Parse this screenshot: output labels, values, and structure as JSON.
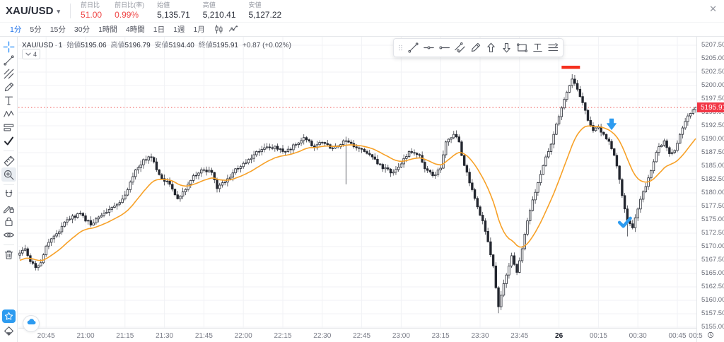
{
  "header": {
    "symbol": "XAU/USD",
    "stats": [
      {
        "label": "前日比",
        "value": "51.00",
        "tone": "red"
      },
      {
        "label": "前日比(率)",
        "value": "0.99%",
        "tone": "red"
      },
      {
        "label": "始値",
        "value": "5,135.71",
        "tone": "dark"
      },
      {
        "label": "高値",
        "value": "5,210.41",
        "tone": "dark"
      },
      {
        "label": "安値",
        "value": "5,127.22",
        "tone": "dark"
      }
    ],
    "close_glyph": "✕"
  },
  "timeframe_bar": {
    "items": [
      "1分",
      "5分",
      "15分",
      "30分",
      "1時間",
      "4時間",
      "1日",
      "1週",
      "1月"
    ],
    "active": "1分",
    "icons": [
      "candles-style",
      "indicators"
    ]
  },
  "legend": {
    "symbol": "XAU/USD",
    "interval": "1",
    "fields": [
      {
        "label": "始値",
        "value": "5195.06"
      },
      {
        "label": "高値",
        "value": "5196.79"
      },
      {
        "label": "安値",
        "value": "5194.40"
      },
      {
        "label": "終値",
        "value": "5195.91"
      }
    ],
    "change": "+0.87 (+0.02%)",
    "collapse_count": "4"
  },
  "sidebar_tools": [
    {
      "name": "crosshair",
      "active": true
    },
    {
      "name": "trend-line"
    },
    {
      "name": "gann-fib"
    },
    {
      "name": "brush"
    },
    {
      "name": "text"
    },
    {
      "name": "xabcd-pattern"
    },
    {
      "name": "prediction"
    },
    {
      "name": "check-mark"
    },
    {
      "name": "divider"
    },
    {
      "name": "ruler"
    },
    {
      "name": "zoom-in",
      "boxed": true
    },
    {
      "name": "divider"
    },
    {
      "name": "magnet"
    },
    {
      "name": "lock-drawing"
    },
    {
      "name": "lock-all"
    },
    {
      "name": "hide-drawings"
    },
    {
      "name": "divider"
    },
    {
      "name": "remove-objects"
    },
    {
      "name": "spacer"
    },
    {
      "name": "favorites-star",
      "fav": true
    },
    {
      "name": "object-tree"
    }
  ],
  "floating_toolbar": [
    "drag-handle",
    "trend-line",
    "horizontal-line",
    "horizontal-ray",
    "parallel-channel",
    "brush",
    "arrow-up",
    "arrow-down",
    "rectangle",
    "text-tool",
    "extended-lines"
  ],
  "corner": {
    "partial_time_label": "00:5"
  },
  "chart_data": {
    "type": "candlestick",
    "symbol": "XAU/USD",
    "interval": "1分",
    "current_bar": {
      "open": 5195.06,
      "high": 5196.79,
      "low": 5194.4,
      "close": 5195.91,
      "change": "+0.87 (+0.02%)"
    },
    "price_axis": {
      "min": 5155.0,
      "max": 5207.5,
      "step": 2.5
    },
    "current_price": 5195.91,
    "time_labels": [
      {
        "i": 10,
        "label": "20:45"
      },
      {
        "i": 25,
        "label": "21:00"
      },
      {
        "i": 40,
        "label": "21:15"
      },
      {
        "i": 55,
        "label": "21:30"
      },
      {
        "i": 70,
        "label": "21:45"
      },
      {
        "i": 85,
        "label": "22:00"
      },
      {
        "i": 100,
        "label": "22:15"
      },
      {
        "i": 115,
        "label": "22:30"
      },
      {
        "i": 130,
        "label": "22:45"
      },
      {
        "i": 145,
        "label": "23:00"
      },
      {
        "i": 160,
        "label": "23:15"
      },
      {
        "i": 175,
        "label": "23:30"
      },
      {
        "i": 190,
        "label": "23:45"
      },
      {
        "i": 205,
        "label": "26",
        "bold": true
      },
      {
        "i": 220,
        "label": "00:15"
      },
      {
        "i": 235,
        "label": "00:30"
      },
      {
        "i": 250,
        "label": "00:45"
      },
      {
        "i": 257,
        "label": "00:5",
        "grid": false
      }
    ],
    "ma": {
      "kind": "EMA",
      "period": 20,
      "color": "#f7a128"
    },
    "candle_colors": {
      "up_fill": "#ffffff",
      "down_fill": "#23262f",
      "border": "#23262f"
    },
    "close_waypoints": [
      [
        0,
        5168.8
      ],
      [
        2,
        5169.6
      ],
      [
        4,
        5167.2
      ],
      [
        6,
        5166.1
      ],
      [
        8,
        5167.0
      ],
      [
        10,
        5170.1
      ],
      [
        14,
        5172.4
      ],
      [
        18,
        5175.0
      ],
      [
        23,
        5176.2
      ],
      [
        27,
        5174.0
      ],
      [
        32,
        5176.2
      ],
      [
        38,
        5178.2
      ],
      [
        41,
        5180.6
      ],
      [
        44,
        5184.3
      ],
      [
        47,
        5186.2
      ],
      [
        50,
        5186.6
      ],
      [
        53,
        5183.4
      ],
      [
        57,
        5181.6
      ],
      [
        60,
        5178.9
      ],
      [
        62,
        5180.2
      ],
      [
        66,
        5183.2
      ],
      [
        69,
        5184.3
      ],
      [
        73,
        5183.8
      ],
      [
        75,
        5180.8
      ],
      [
        78,
        5182.0
      ],
      [
        82,
        5184.5
      ],
      [
        85,
        5185.5
      ],
      [
        89,
        5187.1
      ],
      [
        93,
        5188.4
      ],
      [
        97,
        5188.7
      ],
      [
        101,
        5187.7
      ],
      [
        105,
        5189.0
      ],
      [
        108,
        5190.3
      ],
      [
        112,
        5188.4
      ],
      [
        115,
        5189.4
      ],
      [
        118,
        5188.3
      ],
      [
        122,
        5189.0
      ],
      [
        124,
        5189.7
      ],
      [
        128,
        5188.4
      ],
      [
        131,
        5187.7
      ],
      [
        134,
        5186.7
      ],
      [
        138,
        5184.5
      ],
      [
        142,
        5183.9
      ],
      [
        145,
        5185.4
      ],
      [
        148,
        5187.7
      ],
      [
        152,
        5187.0
      ],
      [
        154,
        5184.5
      ],
      [
        157,
        5183.2
      ],
      [
        160,
        5184.6
      ],
      [
        162,
        5189.5
      ],
      [
        165,
        5190.9
      ],
      [
        167,
        5189.5
      ],
      [
        169,
        5185.1
      ],
      [
        172,
        5180.6
      ],
      [
        174,
        5177.4
      ],
      [
        176,
        5174.8
      ],
      [
        178,
        5170.9
      ],
      [
        180,
        5166.4
      ],
      [
        182,
        5158.8
      ],
      [
        184,
        5163.1
      ],
      [
        186,
        5166.4
      ],
      [
        187,
        5168.3
      ],
      [
        189,
        5165.2
      ],
      [
        191,
        5169.6
      ],
      [
        193,
        5174.8
      ],
      [
        195,
        5178.7
      ],
      [
        197,
        5181.9
      ],
      [
        199,
        5185.1
      ],
      [
        201,
        5187.7
      ],
      [
        203,
        5190.9
      ],
      [
        205,
        5194.2
      ],
      [
        207,
        5197.4
      ],
      [
        209,
        5200.0
      ],
      [
        210,
        5201.2
      ],
      [
        212,
        5199.3
      ],
      [
        214,
        5196.8
      ],
      [
        216,
        5193.5
      ],
      [
        218,
        5191.6
      ],
      [
        220,
        5192.3
      ],
      [
        222,
        5190.9
      ],
      [
        224,
        5189.6
      ],
      [
        226,
        5187.0
      ],
      [
        228,
        5182.5
      ],
      [
        229,
        5179.5
      ],
      [
        231,
        5174.8
      ],
      [
        233,
        5173.5
      ],
      [
        235,
        5177.0
      ],
      [
        237,
        5180.2
      ],
      [
        239,
        5182.8
      ],
      [
        241,
        5185.8
      ],
      [
        243,
        5188.6
      ],
      [
        245,
        5189.7
      ],
      [
        247,
        5187.3
      ],
      [
        249,
        5187.9
      ],
      [
        251,
        5190.9
      ],
      [
        253,
        5193.3
      ],
      [
        255,
        5194.8
      ],
      [
        257,
        5195.91
      ]
    ],
    "wick_events": [
      {
        "i": 124,
        "low": 5181.6
      },
      {
        "i": 182,
        "low": 5157.6
      },
      {
        "i": 231,
        "low": 5171.9
      },
      {
        "i": 210,
        "high": 5202.1
      }
    ],
    "markers": {
      "flat_segment": {
        "from_i": 206,
        "to_i": 213,
        "price": 5203.4,
        "color": "#f5301e"
      },
      "arrow_down": {
        "i": 225,
        "tip_price": 5191.8,
        "color": "#2d9bf0"
      },
      "check_mark": {
        "i": 230,
        "price": 5174.5,
        "color": "#2d9bf0"
      }
    }
  }
}
